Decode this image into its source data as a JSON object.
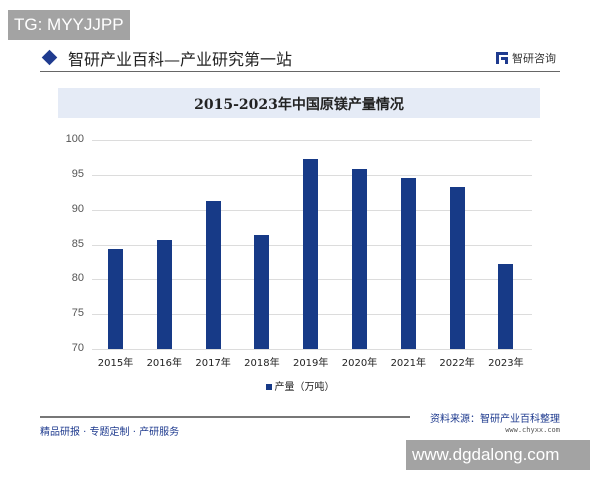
{
  "overlay": {
    "tg_label": "TG: MYYJJPP",
    "site_label": "www.dgdalong.com"
  },
  "header": {
    "title": "智研产业百科—产业研究第一站",
    "logo_text": "智研咨询"
  },
  "footer": {
    "tagline": "精品研报 · 专题定制 · 产研服务",
    "source": "资料来源：智研产业百科整理",
    "url": "www.chyxx.com"
  },
  "colors": {
    "bar": "#173a87",
    "title_bg": "#e5ebf6",
    "accent": "#1f3b8f"
  },
  "chart_data": {
    "type": "bar",
    "title": "2015-2023年中国原镁产量情况",
    "xlabel": "",
    "ylabel": "",
    "categories": [
      "2015年",
      "2016年",
      "2017年",
      "2018年",
      "2019年",
      "2020年",
      "2021年",
      "2022年",
      "2023年"
    ],
    "series": [
      {
        "name": "产量（万吨）",
        "values": [
          84.3,
          85.6,
          91.2,
          86.3,
          97.3,
          95.8,
          94.5,
          93.2,
          82.2
        ]
      }
    ],
    "ylim": [
      70,
      100
    ],
    "yticks": [
      100,
      95,
      90,
      85,
      80,
      75,
      70
    ],
    "grid": true,
    "legend_position": "bottom"
  }
}
